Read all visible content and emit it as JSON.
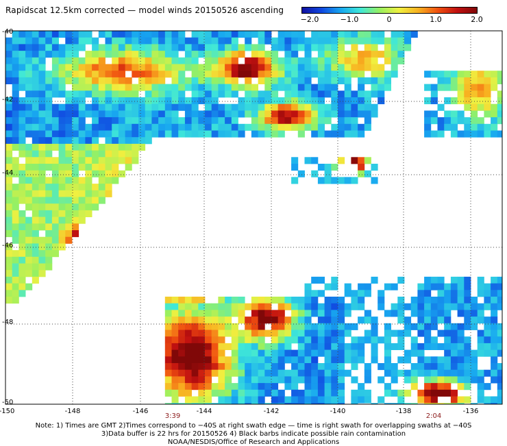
{
  "title": "Rapidscat 12.5km corrected — model winds 20150526 ascending",
  "colorbar": {
    "ticks": [
      "−2.0",
      "−1.0",
      "0",
      "1.0",
      "2.0"
    ],
    "colors": [
      "#1010a0",
      "#1048e0",
      "#18a8f0",
      "#40e8d8",
      "#98f060",
      "#f0f040",
      "#f8b020",
      "#f05010",
      "#c01010",
      "#800808"
    ]
  },
  "map": {
    "lat_labels": [
      "-40",
      "-42",
      "-44",
      "-46",
      "-48",
      "-50"
    ],
    "lon_labels": [
      "-150",
      "-148",
      "-146",
      "-144",
      "-142",
      "-140",
      "-138",
      "-136"
    ],
    "time_labels": [
      {
        "text": "3:39",
        "color": "#8b1a1a"
      },
      {
        "text": "2:04",
        "color": "#8b1a1a"
      }
    ]
  },
  "notes": {
    "line1": "Note: 1) Times are GMT 2)Times correspond to −40S at right swath edge — time is right swath for overlapping swaths at −40S",
    "line2": "3)Data buffer is 22 hrs for 20150526 4) Black barbs indicate possible rain contamination",
    "line3": "NOAA/NESDIS/Office of Research and Applications"
  }
}
